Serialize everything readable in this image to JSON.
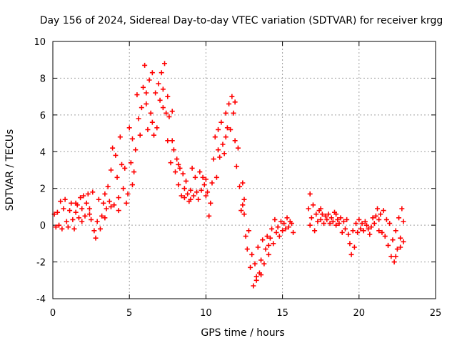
{
  "chart_data": {
    "type": "scatter",
    "title": "Day 156 of 2024, Sidereal Day-to-day VTEC variation (SDTVAR) for receiver krgg",
    "xlabel": "GPS time / hours",
    "ylabel": "SDTVAR / TECUs",
    "xlim": [
      0,
      25
    ],
    "ylim": [
      -4,
      10
    ],
    "xticks": [
      0,
      5,
      10,
      15,
      20,
      25
    ],
    "yticks": [
      -4,
      -2,
      0,
      2,
      4,
      6,
      8,
      10
    ],
    "grid": true,
    "marker": "+",
    "color": "#ff0000",
    "series": [
      {
        "name": "SDTVAR",
        "points": [
          [
            0.1,
            0.6
          ],
          [
            0.2,
            -0.1
          ],
          [
            0.3,
            0.7
          ],
          [
            0.4,
            0.0
          ],
          [
            0.5,
            1.3
          ],
          [
            0.6,
            -0.2
          ],
          [
            0.7,
            0.9
          ],
          [
            0.8,
            1.4
          ],
          [
            0.9,
            0.2
          ],
          [
            1.0,
            -0.1
          ],
          [
            1.1,
            0.8
          ],
          [
            1.2,
            1.2
          ],
          [
            1.3,
            0.3
          ],
          [
            1.4,
            -0.2
          ],
          [
            1.5,
            0.7
          ],
          [
            1.6,
            1.1
          ],
          [
            1.7,
            0.4
          ],
          [
            1.8,
            1.5
          ],
          [
            1.9,
            0.2
          ],
          [
            2.0,
            1.6
          ],
          [
            2.1,
            0.5
          ],
          [
            2.2,
            1.2
          ],
          [
            2.3,
            1.7
          ],
          [
            2.4,
            0.9
          ],
          [
            2.5,
            0.3
          ],
          [
            2.6,
            1.8
          ],
          [
            2.7,
            -0.3
          ],
          [
            2.8,
            -0.7
          ],
          [
            2.9,
            0.2
          ],
          [
            3.0,
            1.4
          ],
          [
            3.1,
            -0.2
          ],
          [
            3.2,
            0.5
          ],
          [
            3.3,
            1.2
          ],
          [
            3.4,
            0.4
          ],
          [
            3.5,
            0.9
          ],
          [
            3.6,
            2.1
          ],
          [
            3.7,
            1.3
          ],
          [
            3.8,
            3.0
          ],
          [
            3.9,
            4.2
          ],
          [
            4.0,
            1.1
          ],
          [
            4.1,
            3.8
          ],
          [
            4.2,
            2.6
          ],
          [
            4.3,
            1.5
          ],
          [
            4.4,
            4.8
          ],
          [
            4.5,
            3.3
          ],
          [
            4.6,
            2.0
          ],
          [
            4.7,
            3.1
          ],
          [
            4.8,
            1.2
          ],
          [
            4.9,
            1.7
          ],
          [
            5.0,
            5.3
          ],
          [
            5.1,
            3.4
          ],
          [
            5.2,
            4.7
          ],
          [
            5.3,
            2.9
          ],
          [
            5.4,
            4.1
          ],
          [
            5.5,
            7.1
          ],
          [
            5.6,
            5.8
          ],
          [
            5.7,
            4.9
          ],
          [
            5.8,
            6.4
          ],
          [
            5.9,
            7.5
          ],
          [
            6.0,
            8.7
          ],
          [
            6.1,
            6.6
          ],
          [
            6.2,
            5.2
          ],
          [
            6.3,
            7.9
          ],
          [
            6.4,
            6.1
          ],
          [
            6.5,
            5.6
          ],
          [
            6.6,
            4.9
          ],
          [
            6.7,
            7.2
          ],
          [
            6.8,
            5.3
          ],
          [
            6.9,
            7.7
          ],
          [
            7.0,
            6.8
          ],
          [
            7.1,
            8.3
          ],
          [
            7.2,
            7.4
          ],
          [
            7.3,
            8.8
          ],
          [
            7.4,
            6.1
          ],
          [
            7.5,
            4.6
          ],
          [
            7.6,
            5.9
          ],
          [
            7.7,
            3.4
          ],
          [
            7.8,
            6.2
          ],
          [
            7.9,
            4.1
          ],
          [
            8.0,
            2.9
          ],
          [
            8.1,
            3.6
          ],
          [
            8.2,
            2.2
          ],
          [
            8.3,
            3.1
          ],
          [
            8.4,
            1.6
          ],
          [
            8.5,
            2.8
          ],
          [
            8.6,
            1.5
          ],
          [
            8.7,
            2.4
          ],
          [
            8.8,
            1.7
          ],
          [
            8.9,
            1.3
          ],
          [
            9.0,
            1.9
          ],
          [
            9.1,
            3.1
          ],
          [
            9.2,
            1.6
          ],
          [
            9.3,
            2.6
          ],
          [
            9.4,
            1.8
          ],
          [
            9.5,
            1.4
          ],
          [
            9.6,
            2.9
          ],
          [
            9.7,
            1.9
          ],
          [
            9.8,
            2.6
          ],
          [
            9.9,
            2.2
          ],
          [
            10.0,
            1.6
          ],
          [
            10.1,
            1.8
          ],
          [
            10.2,
            0.5
          ],
          [
            10.3,
            1.2
          ],
          [
            10.4,
            2.3
          ],
          [
            10.5,
            3.6
          ],
          [
            10.6,
            4.8
          ],
          [
            10.7,
            2.6
          ],
          [
            10.8,
            5.2
          ],
          [
            10.9,
            3.7
          ],
          [
            11.0,
            5.6
          ],
          [
            11.1,
            4.4
          ],
          [
            11.2,
            3.9
          ],
          [
            11.3,
            6.1
          ],
          [
            11.4,
            5.3
          ],
          [
            11.5,
            6.6
          ],
          [
            11.6,
            5.2
          ],
          [
            11.7,
            7.0
          ],
          [
            11.8,
            6.1
          ],
          [
            11.9,
            4.6
          ],
          [
            12.0,
            3.2
          ],
          [
            12.1,
            4.2
          ],
          [
            12.2,
            2.1
          ],
          [
            12.3,
            0.8
          ],
          [
            12.4,
            2.3
          ],
          [
            12.5,
            1.4
          ],
          [
            12.6,
            -0.6
          ],
          [
            12.7,
            -1.3
          ],
          [
            12.8,
            -0.3
          ],
          [
            12.9,
            -2.3
          ],
          [
            13.0,
            -1.6
          ],
          [
            13.1,
            -3.3
          ],
          [
            13.2,
            -2.1
          ],
          [
            13.3,
            -2.8
          ],
          [
            13.4,
            -1.2
          ],
          [
            13.5,
            -2.6
          ],
          [
            13.6,
            -1.9
          ],
          [
            13.7,
            -0.8
          ],
          [
            13.8,
            -2.1
          ],
          [
            13.9,
            -1.3
          ],
          [
            14.0,
            -0.6
          ],
          [
            14.1,
            -1.6
          ],
          [
            14.2,
            -0.7
          ],
          [
            14.3,
            -0.2
          ],
          [
            14.4,
            -1.0
          ],
          [
            14.5,
            0.3
          ],
          [
            14.6,
            -0.4
          ],
          [
            14.7,
            -0.1
          ],
          [
            14.8,
            -0.6
          ],
          [
            14.9,
            0.2
          ],
          [
            15.0,
            -0.3
          ],
          [
            15.1,
            0.1
          ],
          [
            15.2,
            -0.2
          ],
          [
            15.3,
            0.4
          ],
          [
            15.4,
            -0.1
          ],
          [
            15.5,
            0.2
          ],
          [
            15.6,
            0.1
          ],
          [
            15.7,
            -0.4
          ],
          [
            16.7,
            0.9
          ],
          [
            16.8,
            1.7
          ],
          [
            16.9,
            0.4
          ],
          [
            17.0,
            1.1
          ],
          [
            17.1,
            -0.3
          ],
          [
            17.2,
            0.6
          ],
          [
            17.3,
            0.2
          ],
          [
            17.4,
            0.8
          ],
          [
            17.5,
            0.3
          ],
          [
            17.6,
            0.6
          ],
          [
            17.7,
            0.1
          ],
          [
            17.8,
            0.5
          ],
          [
            17.9,
            0.3
          ],
          [
            18.0,
            0.6
          ],
          [
            18.1,
            0.1
          ],
          [
            18.2,
            0.4
          ],
          [
            18.3,
            0.2
          ],
          [
            18.4,
            0.7
          ],
          [
            18.5,
            0.0
          ],
          [
            18.6,
            0.3
          ],
          [
            18.7,
            0.1
          ],
          [
            18.8,
            0.4
          ],
          [
            18.9,
            -0.4
          ],
          [
            19.0,
            0.2
          ],
          [
            19.1,
            -0.2
          ],
          [
            19.2,
            0.3
          ],
          [
            19.3,
            -0.5
          ],
          [
            19.4,
            -1.0
          ],
          [
            19.5,
            -1.6
          ],
          [
            19.6,
            -0.3
          ],
          [
            19.7,
            -1.2
          ],
          [
            19.8,
            0.1
          ],
          [
            19.9,
            -0.4
          ],
          [
            20.0,
            0.3
          ],
          [
            20.1,
            -0.2
          ],
          [
            20.2,
            0.1
          ],
          [
            20.3,
            -0.3
          ],
          [
            20.4,
            0.2
          ],
          [
            20.5,
            0.0
          ],
          [
            20.6,
            -0.2
          ],
          [
            20.7,
            -0.5
          ],
          [
            20.8,
            -0.1
          ],
          [
            20.9,
            0.4
          ],
          [
            21.0,
            0.1
          ],
          [
            21.1,
            0.5
          ],
          [
            21.2,
            0.9
          ],
          [
            21.3,
            -0.3
          ],
          [
            21.4,
            0.6
          ],
          [
            21.5,
            -0.4
          ],
          [
            21.6,
            0.8
          ],
          [
            21.7,
            -0.6
          ],
          [
            21.8,
            0.3
          ],
          [
            21.9,
            -1.1
          ],
          [
            22.0,
            0.1
          ],
          [
            22.1,
            -1.7
          ],
          [
            22.2,
            -0.8
          ],
          [
            22.3,
            -2.0
          ],
          [
            22.4,
            -0.3
          ],
          [
            22.5,
            -1.3
          ],
          [
            22.6,
            0.4
          ],
          [
            22.7,
            -0.7
          ],
          [
            22.8,
            0.9
          ],
          [
            22.9,
            -0.9
          ],
          [
            22.9,
            0.2
          ],
          [
            1.5,
            1.2
          ],
          [
            1.9,
            0.9
          ],
          [
            2.4,
            0.6
          ],
          [
            3.8,
            1.0
          ],
          [
            4.3,
            0.8
          ],
          [
            5.2,
            2.2
          ],
          [
            6.1,
            7.2
          ],
          [
            6.5,
            8.3
          ],
          [
            7.2,
            6.4
          ],
          [
            7.5,
            7.0
          ],
          [
            7.8,
            4.6
          ],
          [
            8.2,
            3.3
          ],
          [
            8.6,
            2.0
          ],
          [
            9.0,
            1.4
          ],
          [
            10.0,
            2.5
          ],
          [
            10.8,
            4.1
          ],
          [
            11.3,
            4.8
          ],
          [
            11.9,
            6.7
          ],
          [
            12.4,
            1.1
          ],
          [
            12.5,
            0.6
          ],
          [
            13.3,
            -3.0
          ],
          [
            13.6,
            -2.7
          ],
          [
            14.1,
            -1.1
          ],
          [
            16.8,
            0.0
          ],
          [
            17.5,
            0.9
          ],
          [
            18.5,
            0.6
          ],
          [
            21.3,
            0.3
          ],
          [
            22.4,
            -1.7
          ],
          [
            22.7,
            -1.2
          ],
          [
            3.4,
            1.7
          ]
        ]
      }
    ]
  }
}
